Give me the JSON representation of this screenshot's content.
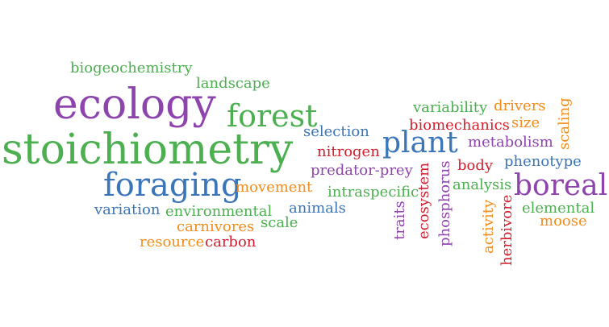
{
  "colors": {
    "purple": "#8e44ad",
    "green": "#4caf50",
    "blue": "#3a76b8",
    "orange": "#f28c1b",
    "red": "#d11f2e"
  },
  "words": [
    {
      "text": "biogeochemistry",
      "color": "green"
    },
    {
      "text": "landscape",
      "color": "green"
    },
    {
      "text": "ecology",
      "color": "purple"
    },
    {
      "text": "forest",
      "color": "green"
    },
    {
      "text": "stoichiometry",
      "color": "green"
    },
    {
      "text": "selection",
      "color": "blue"
    },
    {
      "text": "foraging",
      "color": "blue"
    },
    {
      "text": "movement",
      "color": "orange"
    },
    {
      "text": "variation",
      "color": "blue"
    },
    {
      "text": "environmental",
      "color": "green"
    },
    {
      "text": "carnivores",
      "color": "orange"
    },
    {
      "text": "scale",
      "color": "green"
    },
    {
      "text": "resource",
      "color": "orange"
    },
    {
      "text": "carbon",
      "color": "red"
    },
    {
      "text": "animals",
      "color": "blue"
    },
    {
      "text": "intraspecific",
      "color": "green"
    },
    {
      "text": "predator-prey",
      "color": "purple"
    },
    {
      "text": "nitrogen",
      "color": "red"
    },
    {
      "text": "plant",
      "color": "blue"
    },
    {
      "text": "variability",
      "color": "green"
    },
    {
      "text": "drivers",
      "color": "orange"
    },
    {
      "text": "biomechanics",
      "color": "red"
    },
    {
      "text": "size",
      "color": "orange"
    },
    {
      "text": "scaling",
      "color": "orange"
    },
    {
      "text": "metabolism",
      "color": "purple"
    },
    {
      "text": "body",
      "color": "red"
    },
    {
      "text": "phenotype",
      "color": "blue"
    },
    {
      "text": "analysis",
      "color": "green"
    },
    {
      "text": "boreal",
      "color": "purple"
    },
    {
      "text": "elemental",
      "color": "green"
    },
    {
      "text": "moose",
      "color": "orange"
    },
    {
      "text": "traits",
      "color": "purple"
    },
    {
      "text": "ecosystem",
      "color": "red"
    },
    {
      "text": "phosphorus",
      "color": "purple"
    },
    {
      "text": "activity",
      "color": "orange"
    },
    {
      "text": "herbivore",
      "color": "red"
    }
  ]
}
